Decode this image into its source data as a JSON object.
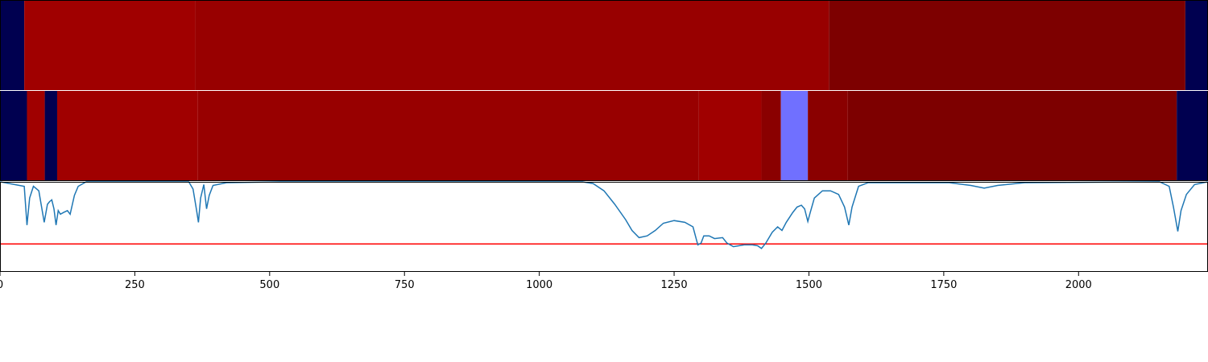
{
  "chart_data": {
    "type": "heatmap",
    "title": "",
    "xlabel": "",
    "ylabel": "",
    "xlim": [
      0,
      2240
    ],
    "x_ticks": [
      0,
      250,
      500,
      750,
      1000,
      1250,
      1500,
      1750,
      2000
    ],
    "x_tick_labels": [
      "0",
      "250",
      "500",
      "750",
      "1000",
      "1250",
      "1500",
      "1750",
      "2000"
    ],
    "strips": [
      {
        "segments": [
          {
            "start": 0,
            "end": 45,
            "color": "#000050"
          },
          {
            "start": 45,
            "end": 362,
            "color": "#a00000"
          },
          {
            "start": 362,
            "end": 1537,
            "color": "#980000"
          },
          {
            "start": 1537,
            "end": 2198,
            "color": "#7d0000"
          },
          {
            "start": 2198,
            "end": 2240,
            "color": "#000050"
          }
        ]
      },
      {
        "segments": [
          {
            "start": 0,
            "end": 50,
            "color": "#000050"
          },
          {
            "start": 50,
            "end": 83,
            "color": "#a00000"
          },
          {
            "start": 83,
            "end": 106,
            "color": "#000050"
          },
          {
            "start": 106,
            "end": 367,
            "color": "#a00000"
          },
          {
            "start": 367,
            "end": 1296,
            "color": "#980000"
          },
          {
            "start": 1296,
            "end": 1412,
            "color": "#a00000"
          },
          {
            "start": 1412,
            "end": 1448,
            "color": "#8a0000"
          },
          {
            "start": 1448,
            "end": 1498,
            "color": "#7070ff"
          },
          {
            "start": 1498,
            "end": 1572,
            "color": "#8a0000"
          },
          {
            "start": 1572,
            "end": 2182,
            "color": "#7d0000"
          },
          {
            "start": 2182,
            "end": 2240,
            "color": "#000050"
          }
        ]
      }
    ],
    "line_series": {
      "ylim": [
        0,
        1
      ],
      "color": "#1f77b4",
      "points": [
        [
          0,
          1.0
        ],
        [
          45,
          0.95
        ],
        [
          50,
          0.52
        ],
        [
          55,
          0.82
        ],
        [
          62,
          0.95
        ],
        [
          72,
          0.9
        ],
        [
          82,
          0.55
        ],
        [
          88,
          0.75
        ],
        [
          92,
          0.78
        ],
        [
          96,
          0.8
        ],
        [
          100,
          0.7
        ],
        [
          104,
          0.52
        ],
        [
          108,
          0.68
        ],
        [
          112,
          0.64
        ],
        [
          118,
          0.66
        ],
        [
          125,
          0.68
        ],
        [
          130,
          0.64
        ],
        [
          138,
          0.85
        ],
        [
          145,
          0.95
        ],
        [
          160,
          1.0
        ],
        [
          350,
          1.0
        ],
        [
          358,
          0.92
        ],
        [
          364,
          0.7
        ],
        [
          368,
          0.55
        ],
        [
          372,
          0.82
        ],
        [
          378,
          0.97
        ],
        [
          383,
          0.7
        ],
        [
          388,
          0.85
        ],
        [
          395,
          0.96
        ],
        [
          420,
          0.99
        ],
        [
          520,
          1.0
        ],
        [
          1080,
          1.0
        ],
        [
          1100,
          0.98
        ],
        [
          1120,
          0.9
        ],
        [
          1140,
          0.75
        ],
        [
          1160,
          0.58
        ],
        [
          1172,
          0.46
        ],
        [
          1185,
          0.38
        ],
        [
          1200,
          0.4
        ],
        [
          1215,
          0.46
        ],
        [
          1230,
          0.54
        ],
        [
          1250,
          0.57
        ],
        [
          1270,
          0.55
        ],
        [
          1285,
          0.5
        ],
        [
          1294,
          0.3
        ],
        [
          1300,
          0.32
        ],
        [
          1305,
          0.4
        ],
        [
          1315,
          0.4
        ],
        [
          1325,
          0.37
        ],
        [
          1340,
          0.38
        ],
        [
          1348,
          0.32
        ],
        [
          1360,
          0.28
        ],
        [
          1380,
          0.3
        ],
        [
          1395,
          0.3
        ],
        [
          1405,
          0.29
        ],
        [
          1412,
          0.26
        ],
        [
          1420,
          0.32
        ],
        [
          1432,
          0.44
        ],
        [
          1442,
          0.5
        ],
        [
          1450,
          0.46
        ],
        [
          1458,
          0.55
        ],
        [
          1470,
          0.66
        ],
        [
          1478,
          0.72
        ],
        [
          1486,
          0.74
        ],
        [
          1492,
          0.7
        ],
        [
          1498,
          0.56
        ],
        [
          1502,
          0.65
        ],
        [
          1510,
          0.82
        ],
        [
          1525,
          0.9
        ],
        [
          1540,
          0.9
        ],
        [
          1555,
          0.86
        ],
        [
          1566,
          0.72
        ],
        [
          1574,
          0.52
        ],
        [
          1580,
          0.72
        ],
        [
          1592,
          0.95
        ],
        [
          1610,
          0.99
        ],
        [
          1760,
          0.99
        ],
        [
          1800,
          0.96
        ],
        [
          1825,
          0.93
        ],
        [
          1850,
          0.96
        ],
        [
          1900,
          0.99
        ],
        [
          2150,
          1.0
        ],
        [
          2168,
          0.95
        ],
        [
          2176,
          0.72
        ],
        [
          2184,
          0.45
        ],
        [
          2190,
          0.68
        ],
        [
          2200,
          0.86
        ],
        [
          2215,
          0.97
        ],
        [
          2240,
          1.0
        ]
      ]
    },
    "threshold": {
      "y": 0.31,
      "color": "#ff0000"
    }
  }
}
